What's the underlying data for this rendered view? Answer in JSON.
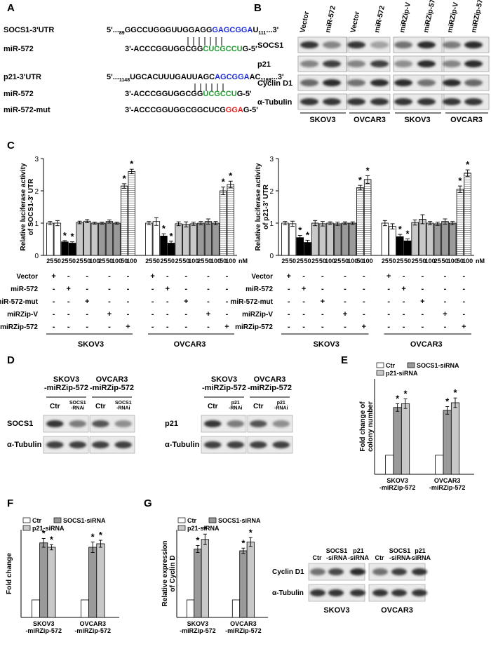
{
  "colors": {
    "seed_blue": "#1c2bd6",
    "mirna_green": "#1f9a2e",
    "mutation_red": "#e02020",
    "bar_white": "#ffffff",
    "bar_black": "#000000",
    "bar_light": "#c8c8c8",
    "bar_mid": "#9a9a9a",
    "bar_striped": "#e6e6e6",
    "blot_band": "#222222",
    "blot_bg": "#e9e9e9"
  },
  "panels": {
    "A": {
      "letter": "A",
      "rows": [
        {
          "label": "SOCS1-3'UTR",
          "prefix": "5'...",
          "sub_start": "89",
          "plain": "GGCCUGGGUUGGAGG",
          "colored": "GAGCGGA",
          "color": "seed_blue",
          "tail": "U",
          "sub_end": "111",
          "end": "...3'"
        },
        {
          "label": "miR-572",
          "prefix": "3'-",
          "plain": "ACCCGGUGGCGG",
          "colored": "CUCGCCU",
          "color": "mirna_green",
          "tail": "G-5'"
        },
        {
          "label": "p21-3'UTR",
          "prefix": "5'...",
          "sub_start": "1148",
          "plain": "UGCACUUUGAUUAGC",
          "colored": "AGCGGA",
          "color": "seed_blue",
          "tail": "AC",
          "sub_end": "1169",
          "end": "...3'"
        },
        {
          "label": "miR-572",
          "prefix": "3'-",
          "plain": "ACCCGGUGGCGG",
          "colored": "UCGCCU",
          "color": "mirna_green",
          "tail": "G-5'"
        },
        {
          "label": "miR-572-mut",
          "prefix": "3'-",
          "plain": "ACCCGGUGGCGGCUCG",
          "colored": "GGA",
          "color": "mutation_red",
          "tail": "G-5'"
        }
      ]
    },
    "B": {
      "letter": "B",
      "left_lanes": [
        "Vector",
        "miR-572",
        "Vector",
        "miR-572"
      ],
      "right_lanes": [
        "miRZip-V",
        "miRZip-572",
        "miRZip-V",
        "miRZip-572"
      ],
      "rows": [
        "SOCS1",
        "p21",
        "Cyclin D1",
        "α-Tubulin"
      ],
      "left_cells": [
        "SKOV3",
        "OVCAR3"
      ],
      "right_cells": [
        "SKOV3",
        "OVCAR3"
      ]
    },
    "C": {
      "letter": "C",
      "unit": "nM",
      "doses": [
        "25",
        "50",
        "25",
        "50",
        "25",
        "50",
        "100",
        "25",
        "50",
        "100",
        "50",
        "100"
      ],
      "conditions": [
        "Vector",
        "miR-572",
        "miR-572-mut",
        "miRZip-V",
        "miRZip-572"
      ],
      "matrix": [
        [
          "+",
          "-",
          "-",
          "-",
          "-"
        ],
        [
          "-",
          "+",
          "-",
          "-",
          "-"
        ],
        [
          "-",
          "-",
          "+",
          "-",
          "-"
        ],
        [
          "-",
          "-",
          "-",
          "+",
          "-"
        ],
        [
          "-",
          "-",
          "-",
          "-",
          "+"
        ]
      ],
      "cells": [
        "SKOV3",
        "OVCAR3"
      ]
    },
    "D": {
      "letter": "D",
      "left_groups": [
        "SKOV3\n-miRZip-572",
        "OVCAR3\n-miRZip-572"
      ],
      "right_groups": [
        "SKOV3\n-miRZip-572",
        "OVCAR3\n-miRZip-572"
      ],
      "left_lanes": [
        "Ctr",
        "SOCS1\n-RNAi",
        "Ctr",
        "SOCS1\n-RNAi"
      ],
      "right_lanes": [
        "Ctr",
        "p21\n-RNAi",
        "Ctr",
        "p21\n-RNAi"
      ],
      "left_rows": [
        "SOCS1",
        "α-Tubulin"
      ],
      "right_rows": [
        "p21",
        "α-Tubulin"
      ]
    },
    "E": {
      "letter": "E"
    },
    "F": {
      "letter": "F"
    },
    "G": {
      "letter": "G",
      "blot_lanes": [
        "Ctr",
        "SOCS1\n-siRNA",
        "p21\n-siRNA",
        "Ctr",
        "SOCS1\n-siRNA",
        "p21\n-siRNA"
      ],
      "blot_rows": [
        "Cyclin D1",
        "α-Tubulin"
      ],
      "blot_cells": [
        "SKOV3",
        "OVCAR3"
      ]
    }
  },
  "chart_data": [
    {
      "panel": "C-left",
      "type": "bar",
      "ylabel": "Relative luciferase activity\nof SOCS1-3' UTR",
      "ylim": [
        0,
        3
      ],
      "yticks": [
        0,
        1,
        2,
        3
      ],
      "groups": [
        "SKOV3",
        "OVCAR3"
      ],
      "bars": [
        {
          "value": 1.0,
          "err": 0.05,
          "fill": "bar_white",
          "star": false
        },
        {
          "value": 1.0,
          "err": 0.08,
          "fill": "bar_white",
          "star": false
        },
        {
          "value": 0.42,
          "err": 0.04,
          "fill": "bar_black",
          "star": true
        },
        {
          "value": 0.38,
          "err": 0.04,
          "fill": "bar_black",
          "star": true
        },
        {
          "value": 1.02,
          "err": 0.04,
          "fill": "bar_light",
          "star": false
        },
        {
          "value": 1.06,
          "err": 0.05,
          "fill": "bar_light",
          "star": false
        },
        {
          "value": 1.0,
          "err": 0.03,
          "fill": "bar_light",
          "star": false
        },
        {
          "value": 1.0,
          "err": 0.03,
          "fill": "bar_mid",
          "star": false
        },
        {
          "value": 1.05,
          "err": 0.05,
          "fill": "bar_mid",
          "star": false
        },
        {
          "value": 1.0,
          "err": 0.03,
          "fill": "bar_mid",
          "star": false
        },
        {
          "value": 2.15,
          "err": 0.07,
          "fill": "bar_striped",
          "star": true
        },
        {
          "value": 2.6,
          "err": 0.07,
          "fill": "bar_striped",
          "star": true
        },
        {
          "value": 1.0,
          "err": 0.05,
          "fill": "bar_white",
          "star": false
        },
        {
          "value": 1.05,
          "err": 0.12,
          "fill": "bar_white",
          "star": false
        },
        {
          "value": 0.6,
          "err": 0.07,
          "fill": "bar_black",
          "star": true
        },
        {
          "value": 0.38,
          "err": 0.06,
          "fill": "bar_black",
          "star": true
        },
        {
          "value": 0.98,
          "err": 0.06,
          "fill": "bar_light",
          "star": false
        },
        {
          "value": 0.96,
          "err": 0.08,
          "fill": "bar_light",
          "star": false
        },
        {
          "value": 0.98,
          "err": 0.05,
          "fill": "bar_light",
          "star": false
        },
        {
          "value": 1.0,
          "err": 0.05,
          "fill": "bar_mid",
          "star": false
        },
        {
          "value": 1.05,
          "err": 0.08,
          "fill": "bar_mid",
          "star": false
        },
        {
          "value": 1.0,
          "err": 0.05,
          "fill": "bar_mid",
          "star": false
        },
        {
          "value": 2.0,
          "err": 0.12,
          "fill": "bar_striped",
          "star": true
        },
        {
          "value": 2.2,
          "err": 0.1,
          "fill": "bar_striped",
          "star": true
        }
      ]
    },
    {
      "panel": "C-right",
      "type": "bar",
      "ylabel": "Relative luciferase activity\nof p21-3' UTR",
      "ylim": [
        0,
        3
      ],
      "yticks": [
        0,
        1,
        2,
        3
      ],
      "groups": [
        "SKOV3",
        "OVCAR3"
      ],
      "bars": [
        {
          "value": 1.0,
          "err": 0.05,
          "fill": "bar_white",
          "star": false
        },
        {
          "value": 0.98,
          "err": 0.08,
          "fill": "bar_white",
          "star": false
        },
        {
          "value": 0.55,
          "err": 0.07,
          "fill": "bar_black",
          "star": true
        },
        {
          "value": 0.4,
          "err": 0.07,
          "fill": "bar_black",
          "star": true
        },
        {
          "value": 1.0,
          "err": 0.08,
          "fill": "bar_light",
          "star": false
        },
        {
          "value": 0.98,
          "err": 0.07,
          "fill": "bar_light",
          "star": false
        },
        {
          "value": 1.0,
          "err": 0.04,
          "fill": "bar_light",
          "star": false
        },
        {
          "value": 0.98,
          "err": 0.05,
          "fill": "bar_mid",
          "star": false
        },
        {
          "value": 1.0,
          "err": 0.04,
          "fill": "bar_mid",
          "star": false
        },
        {
          "value": 1.0,
          "err": 0.04,
          "fill": "bar_mid",
          "star": false
        },
        {
          "value": 2.1,
          "err": 0.07,
          "fill": "bar_striped",
          "star": true
        },
        {
          "value": 2.35,
          "err": 0.12,
          "fill": "bar_striped",
          "star": true
        },
        {
          "value": 1.0,
          "err": 0.08,
          "fill": "bar_white",
          "star": false
        },
        {
          "value": 0.9,
          "err": 0.08,
          "fill": "bar_white",
          "star": false
        },
        {
          "value": 0.58,
          "err": 0.07,
          "fill": "bar_black",
          "star": true
        },
        {
          "value": 0.45,
          "err": 0.06,
          "fill": "bar_black",
          "star": true
        },
        {
          "value": 1.02,
          "err": 0.08,
          "fill": "bar_light",
          "star": false
        },
        {
          "value": 1.12,
          "err": 0.14,
          "fill": "bar_light",
          "star": false
        },
        {
          "value": 1.0,
          "err": 0.05,
          "fill": "bar_light",
          "star": false
        },
        {
          "value": 0.98,
          "err": 0.05,
          "fill": "bar_mid",
          "star": false
        },
        {
          "value": 1.05,
          "err": 0.08,
          "fill": "bar_mid",
          "star": false
        },
        {
          "value": 1.0,
          "err": 0.05,
          "fill": "bar_mid",
          "star": false
        },
        {
          "value": 2.05,
          "err": 0.1,
          "fill": "bar_striped",
          "star": true
        },
        {
          "value": 2.55,
          "err": 0.1,
          "fill": "bar_striped",
          "star": true
        }
      ]
    },
    {
      "panel": "E",
      "type": "bar",
      "ylabel": "Fold  change of\ncolony number",
      "ylim": [
        0,
        5
      ],
      "yticks": [],
      "legend": [
        "Ctr",
        "SOCS1-siRNA",
        "p21-siRNA"
      ],
      "categories": [
        "SKOV3\n-miRZip-572",
        "OVCAR3\n-miRZip-572"
      ],
      "series": [
        {
          "name": "Ctr",
          "values": [
            1.0,
            1.0
          ],
          "err": [
            0,
            0
          ],
          "stars": [
            false,
            false
          ]
        },
        {
          "name": "SOCS1-siRNA",
          "values": [
            3.5,
            3.35
          ],
          "err": [
            0.2,
            0.2
          ],
          "stars": [
            true,
            true
          ]
        },
        {
          "name": "p21-siRNA",
          "values": [
            3.7,
            3.75
          ],
          "err": [
            0.25,
            0.25
          ],
          "stars": [
            true,
            true
          ]
        }
      ]
    },
    {
      "panel": "F",
      "type": "bar",
      "ylabel": "Fold change",
      "ylim": [
        0,
        5
      ],
      "yticks": [],
      "legend": [
        "Ctr",
        "SOCS1-siRNA",
        "p21-siRNA"
      ],
      "categories": [
        "SKOV3\n-miRZip-572",
        "OVCAR3\n-miRZip-572"
      ],
      "series": [
        {
          "name": "Ctr",
          "values": [
            1.0,
            1.0
          ],
          "err": [
            0,
            0
          ],
          "stars": [
            false,
            false
          ]
        },
        {
          "name": "SOCS1-siRNA",
          "values": [
            4.25,
            4.0
          ],
          "err": [
            0.25,
            0.3
          ],
          "stars": [
            true,
            true
          ]
        },
        {
          "name": "p21-siRNA",
          "values": [
            4.0,
            4.2
          ],
          "err": [
            0.15,
            0.2
          ],
          "stars": [
            true,
            true
          ]
        }
      ]
    },
    {
      "panel": "G",
      "type": "bar",
      "ylabel": "Relative expression\nof Cyclin D",
      "ylim": [
        0,
        5
      ],
      "yticks": [],
      "legend": [
        "Ctr",
        "SOCS1-siRNA",
        "p21-siRNA"
      ],
      "categories": [
        "SKOV3\n-miRZip-572",
        "OVCAR3\n-miRZip-572"
      ],
      "series": [
        {
          "name": "Ctr",
          "values": [
            1.0,
            1.0
          ],
          "err": [
            0,
            0
          ],
          "stars": [
            false,
            false
          ]
        },
        {
          "name": "SOCS1-siRNA",
          "values": [
            3.9,
            3.8
          ],
          "err": [
            0.2,
            0.15
          ],
          "stars": [
            true,
            true
          ]
        },
        {
          "name": "p21-siRNA",
          "values": [
            4.45,
            4.3
          ],
          "err": [
            0.3,
            0.25
          ],
          "stars": [
            true,
            true
          ]
        }
      ]
    }
  ]
}
